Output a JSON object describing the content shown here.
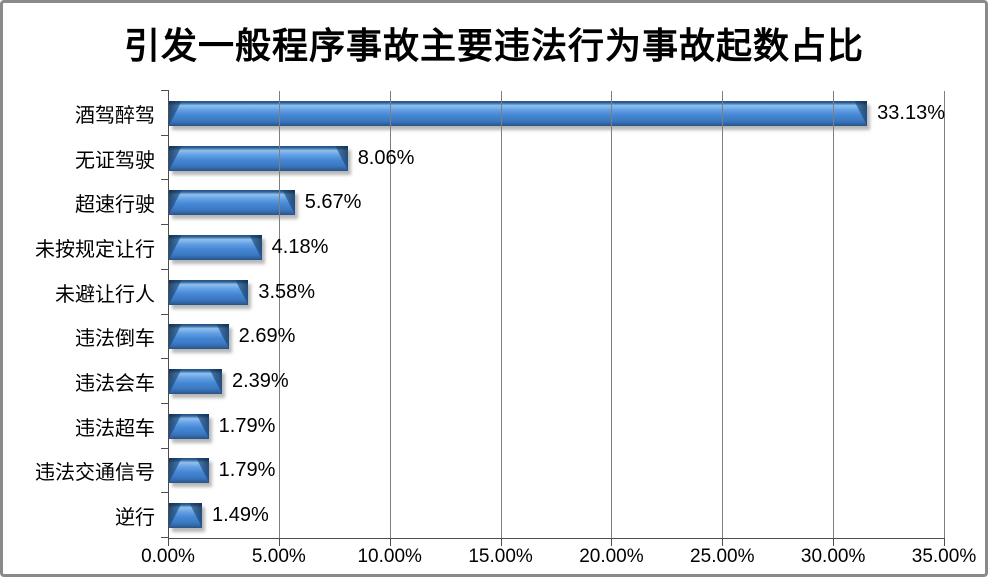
{
  "frame": {
    "border_color": "#8a8a8a",
    "background": "#ffffff"
  },
  "chart_data": {
    "type": "bar",
    "orientation": "horizontal",
    "title": "引发一般程序事故主要违法行为事故起数占比",
    "categories": [
      "酒驾醉驾",
      "无证驾驶",
      "超速行驶",
      "未按规定让行",
      "未避让行人",
      "违法倒车",
      "违法会车",
      "违法超车",
      "违法交通信号",
      "逆行"
    ],
    "values": [
      33.13,
      8.06,
      5.67,
      4.18,
      3.58,
      2.69,
      2.39,
      1.79,
      1.79,
      1.49
    ],
    "data_labels": [
      "33.13%",
      "8.06%",
      "5.67%",
      "4.18%",
      "3.58%",
      "2.69%",
      "2.39%",
      "1.79%",
      "1.79%",
      "1.49%"
    ],
    "xlabel": "",
    "ylabel": "",
    "x_axis": {
      "min": 0,
      "max": 35,
      "step": 5,
      "tick_labels": [
        "0.00%",
        "5.00%",
        "10.00%",
        "15.00%",
        "20.00%",
        "25.00%",
        "30.00%",
        "35.00%"
      ]
    },
    "grid": true,
    "legend": false,
    "bar_color": "#4486d4",
    "bar_edge_color": "#24547f",
    "gridline_color": "#7f7f7f",
    "axis_color": "#4d4d4d"
  }
}
